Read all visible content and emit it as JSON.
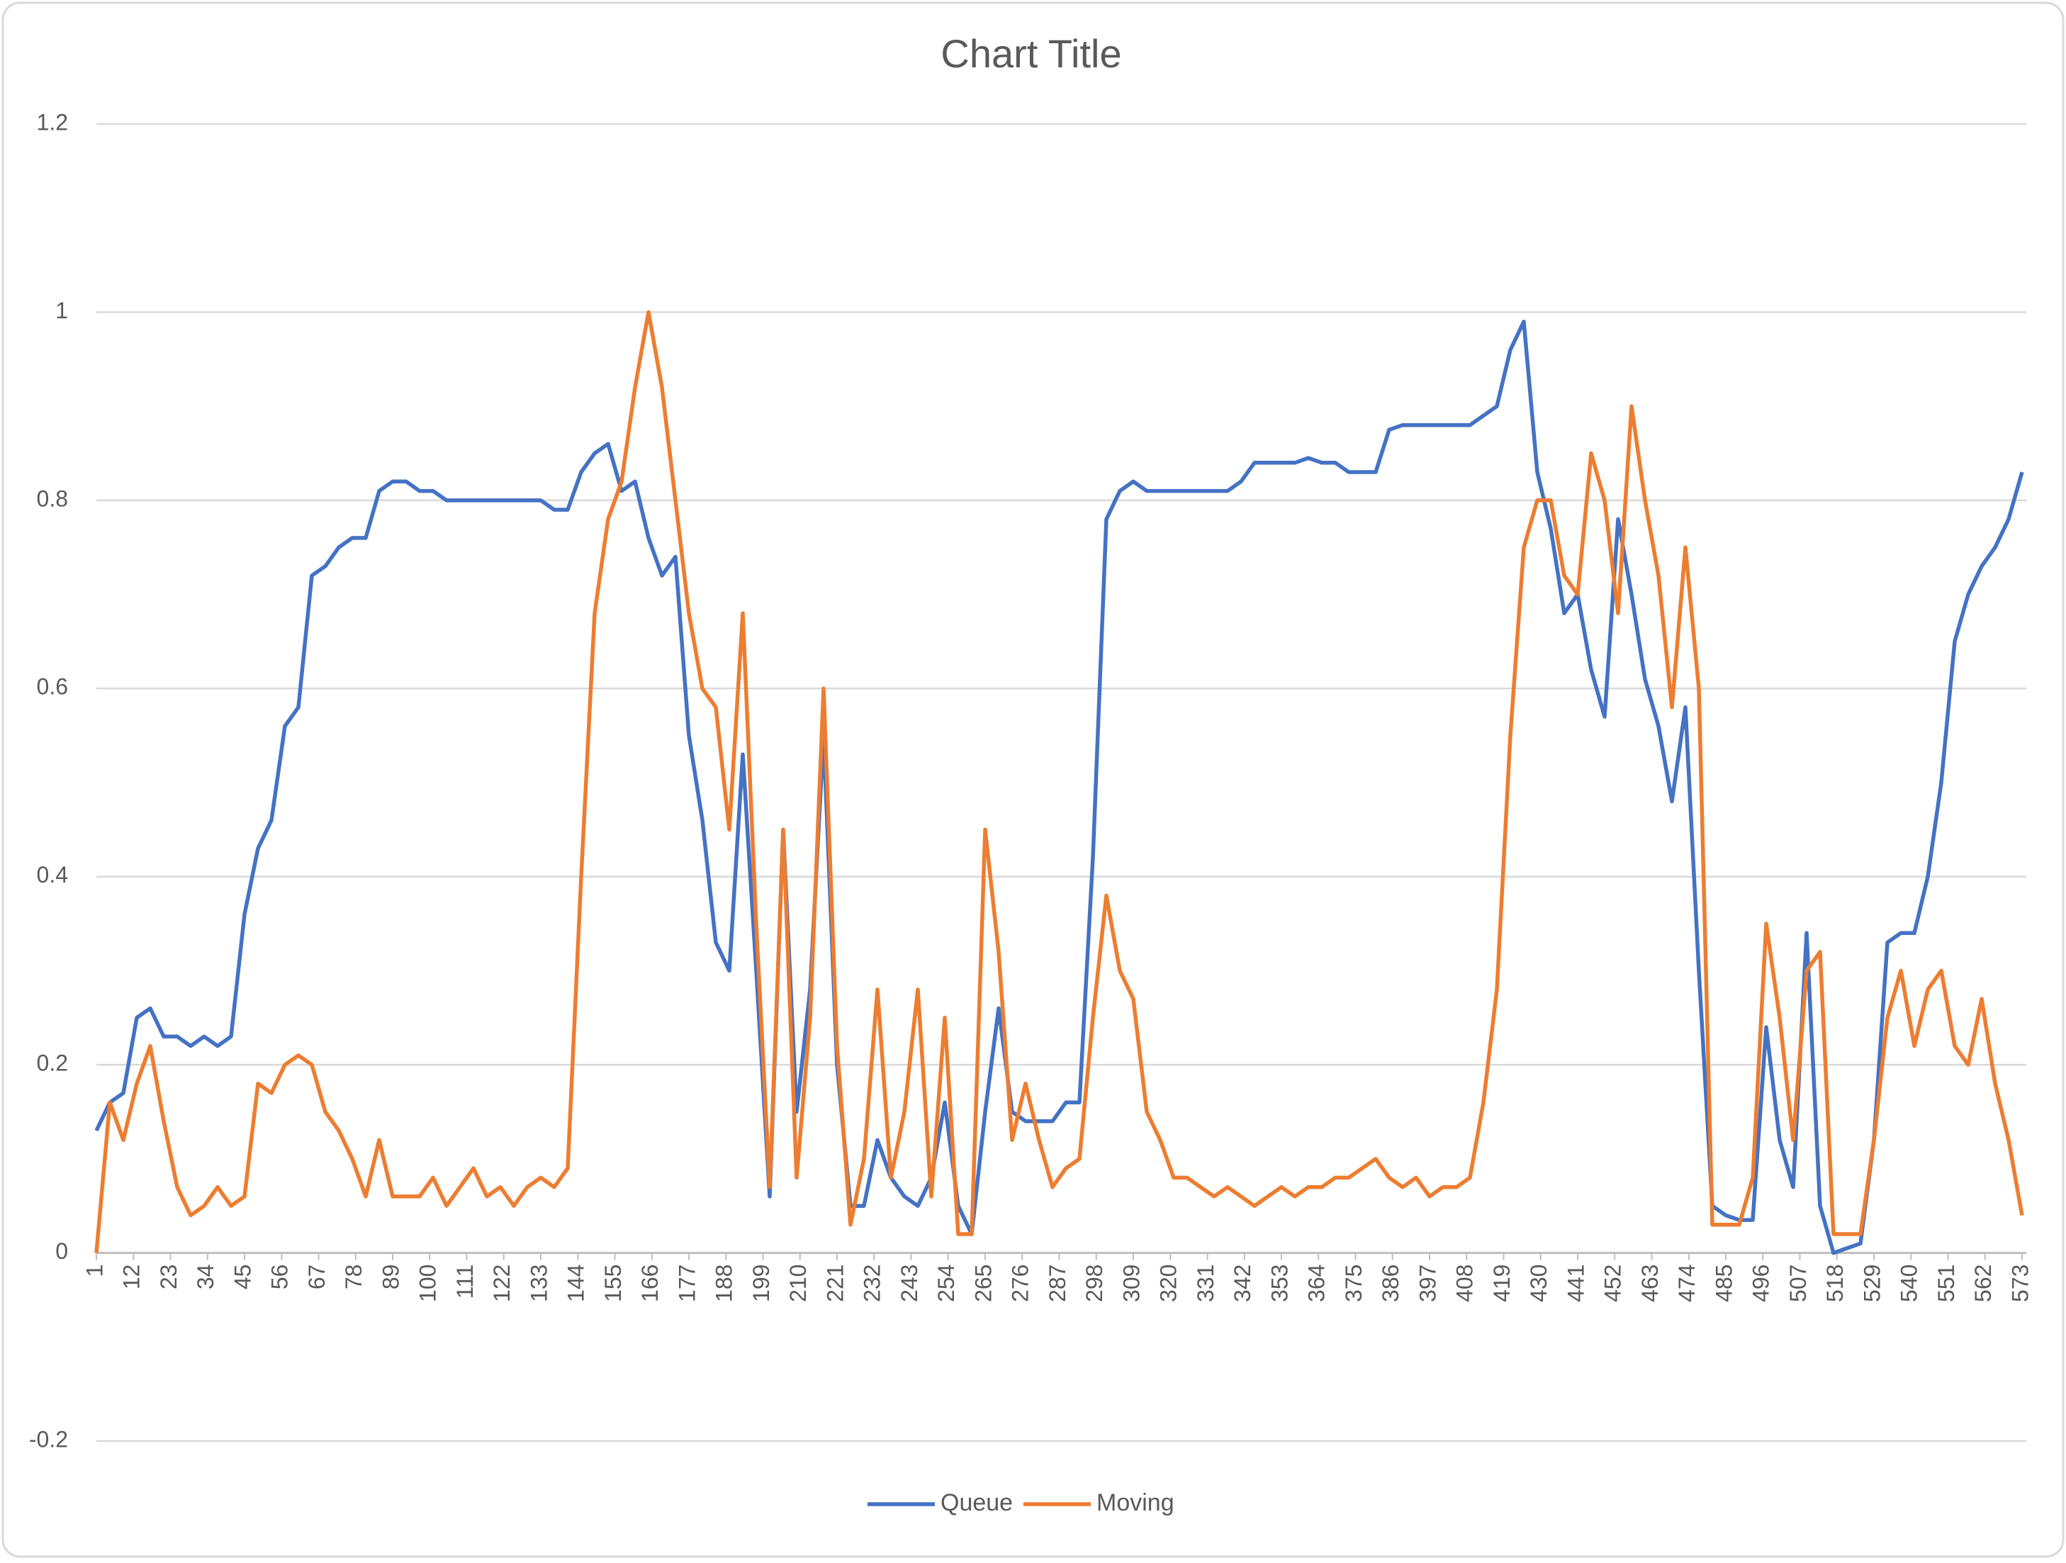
{
  "chart_data": {
    "type": "line",
    "title": "Chart Title",
    "x": [
      1,
      5,
      9,
      13,
      17,
      21,
      25,
      29,
      33,
      37,
      41,
      45,
      49,
      53,
      57,
      61,
      65,
      69,
      73,
      77,
      81,
      85,
      89,
      93,
      97,
      101,
      105,
      109,
      113,
      117,
      121,
      125,
      129,
      133,
      137,
      141,
      145,
      149,
      153,
      157,
      161,
      165,
      169,
      173,
      177,
      181,
      185,
      189,
      193,
      197,
      201,
      205,
      209,
      213,
      217,
      221,
      225,
      229,
      233,
      237,
      241,
      245,
      249,
      253,
      257,
      261,
      265,
      269,
      273,
      277,
      281,
      285,
      289,
      293,
      297,
      301,
      305,
      309,
      313,
      317,
      321,
      325,
      329,
      333,
      337,
      341,
      345,
      349,
      353,
      357,
      361,
      365,
      369,
      373,
      377,
      381,
      385,
      389,
      393,
      397,
      401,
      405,
      409,
      413,
      417,
      421,
      425,
      429,
      433,
      437,
      441,
      445,
      449,
      453,
      457,
      461,
      465,
      469,
      473,
      477,
      481,
      485,
      489,
      493,
      497,
      501,
      505,
      509,
      513,
      517,
      521,
      525,
      529,
      533,
      537,
      541,
      545,
      549,
      553,
      557,
      561,
      565,
      569,
      573
    ],
    "series": [
      {
        "name": "Queue",
        "color": "#4472c4",
        "values": [
          0.13,
          0.16,
          0.17,
          0.25,
          0.26,
          0.23,
          0.23,
          0.22,
          0.23,
          0.22,
          0.23,
          0.36,
          0.43,
          0.46,
          0.56,
          0.58,
          0.72,
          0.73,
          0.75,
          0.76,
          0.76,
          0.81,
          0.82,
          0.82,
          0.81,
          0.81,
          0.8,
          0.8,
          0.8,
          0.8,
          0.8,
          0.8,
          0.8,
          0.8,
          0.79,
          0.79,
          0.83,
          0.85,
          0.86,
          0.81,
          0.82,
          0.76,
          0.72,
          0.74,
          0.55,
          0.46,
          0.33,
          0.3,
          0.53,
          0.3,
          0.06,
          0.45,
          0.15,
          0.28,
          0.55,
          0.2,
          0.05,
          0.05,
          0.12,
          0.08,
          0.06,
          0.05,
          0.08,
          0.16,
          0.05,
          0.02,
          0.15,
          0.26,
          0.15,
          0.14,
          0.14,
          0.14,
          0.16,
          0.16,
          0.42,
          0.78,
          0.81,
          0.82,
          0.81,
          0.81,
          0.81,
          0.81,
          0.81,
          0.81,
          0.81,
          0.82,
          0.84,
          0.84,
          0.84,
          0.84,
          0.845,
          0.84,
          0.84,
          0.83,
          0.83,
          0.83,
          0.875,
          0.88,
          0.88,
          0.88,
          0.88,
          0.88,
          0.88,
          0.89,
          0.9,
          0.96,
          0.99,
          0.83,
          0.77,
          0.68,
          0.7,
          0.62,
          0.57,
          0.78,
          0.7,
          0.61,
          0.56,
          0.48,
          0.58,
          0.3,
          0.05,
          0.04,
          0.035,
          0.035,
          0.24,
          0.12,
          0.07,
          0.34,
          0.05,
          0,
          0.005,
          0.01,
          0.12,
          0.33,
          0.34,
          0.34,
          0.4,
          0.5,
          0.65,
          0.7,
          0.73,
          0.75,
          0.78,
          0.83
        ]
      },
      {
        "name": "Moving",
        "color": "#ed7d31",
        "values": [
          0,
          0.16,
          0.12,
          0.18,
          0.22,
          0.14,
          0.07,
          0.04,
          0.05,
          0.07,
          0.05,
          0.06,
          0.18,
          0.17,
          0.2,
          0.21,
          0.2,
          0.15,
          0.13,
          0.1,
          0.06,
          0.12,
          0.06,
          0.06,
          0.06,
          0.08,
          0.05,
          0.07,
          0.09,
          0.06,
          0.07,
          0.05,
          0.07,
          0.08,
          0.07,
          0.09,
          0.4,
          0.68,
          0.78,
          0.82,
          0.92,
          1,
          0.92,
          0.8,
          0.68,
          0.6,
          0.58,
          0.45,
          0.68,
          0.35,
          0.07,
          0.45,
          0.08,
          0.25,
          0.6,
          0.22,
          0.03,
          0.1,
          0.28,
          0.08,
          0.15,
          0.28,
          0.06,
          0.25,
          0.02,
          0.02,
          0.45,
          0.32,
          0.12,
          0.18,
          0.12,
          0.07,
          0.09,
          0.1,
          0.25,
          0.38,
          0.3,
          0.27,
          0.15,
          0.12,
          0.08,
          0.08,
          0.07,
          0.06,
          0.07,
          0.06,
          0.05,
          0.06,
          0.07,
          0.06,
          0.07,
          0.07,
          0.08,
          0.08,
          0.09,
          0.1,
          0.08,
          0.07,
          0.08,
          0.06,
          0.07,
          0.07,
          0.08,
          0.16,
          0.28,
          0.55,
          0.75,
          0.8,
          0.8,
          0.72,
          0.7,
          0.85,
          0.8,
          0.68,
          0.9,
          0.8,
          0.72,
          0.58,
          0.75,
          0.6,
          0.03,
          0.03,
          0.03,
          0.08,
          0.35,
          0.25,
          0.12,
          0.3,
          0.32,
          0.02,
          0.02,
          0.02,
          0.12,
          0.25,
          0.3,
          0.22,
          0.28,
          0.3,
          0.22,
          0.2,
          0.27,
          0.18,
          0.12,
          0.04
        ]
      }
    ],
    "xlim": [
      1,
      573
    ],
    "xticks": [
      1,
      12,
      23,
      34,
      45,
      56,
      67,
      78,
      89,
      100,
      111,
      122,
      133,
      144,
      155,
      166,
      177,
      188,
      199,
      210,
      221,
      232,
      243,
      254,
      265,
      276,
      287,
      298,
      309,
      320,
      331,
      342,
      353,
      364,
      375,
      386,
      397,
      408,
      419,
      430,
      441,
      452,
      463,
      474,
      485,
      496,
      507,
      518,
      529,
      540,
      551,
      562,
      573
    ],
    "ylim": [
      -0.2,
      1.2
    ],
    "yticks": [
      -0.2,
      0,
      0.2,
      0.4,
      0.6,
      0.8,
      1,
      1.2
    ],
    "grid": true,
    "legend": "bottom"
  }
}
